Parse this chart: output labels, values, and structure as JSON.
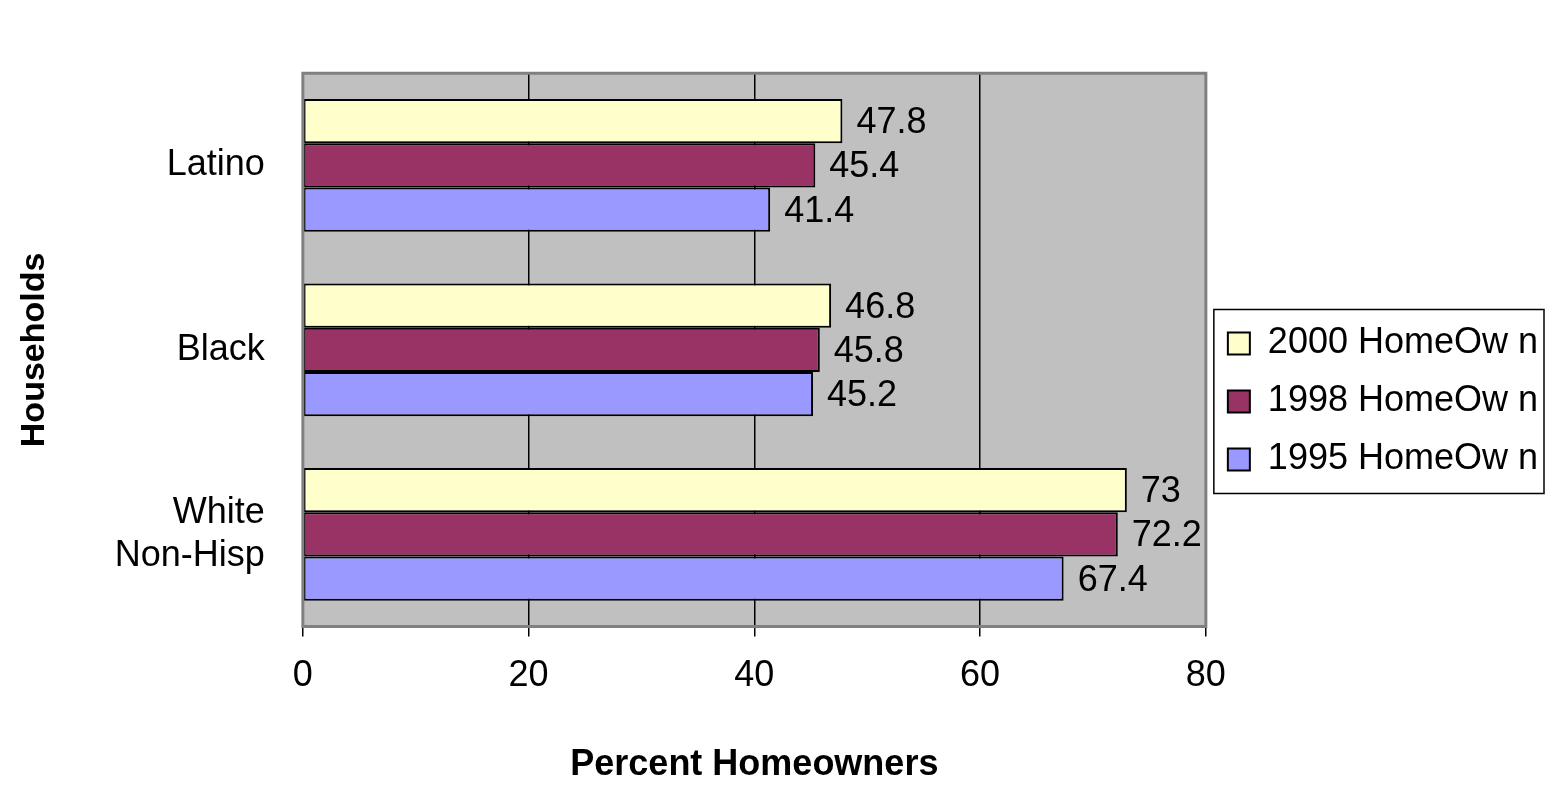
{
  "chart_data": {
    "type": "bar",
    "orientation": "horizontal",
    "xlabel": "Percent Homeowners",
    "ylabel": "Households",
    "categories": [
      "Latino",
      "Black",
      "White Non-Hisp"
    ],
    "series": [
      {
        "name": "2000 HomeOw n",
        "color": "#ffffcc",
        "values": [
          47.8,
          46.8,
          73
        ]
      },
      {
        "name": "1998 HomeOw n",
        "color": "#993366",
        "values": [
          45.4,
          45.8,
          72.2
        ]
      },
      {
        "name": "1995 HomeOw n",
        "color": "#9999ff",
        "values": [
          41.4,
          45.2,
          67.4
        ]
      }
    ],
    "xlim": [
      0,
      80
    ],
    "xticks": [
      0,
      20,
      40,
      60,
      80
    ],
    "grid": "x",
    "legend": "right",
    "data_labels": true
  }
}
